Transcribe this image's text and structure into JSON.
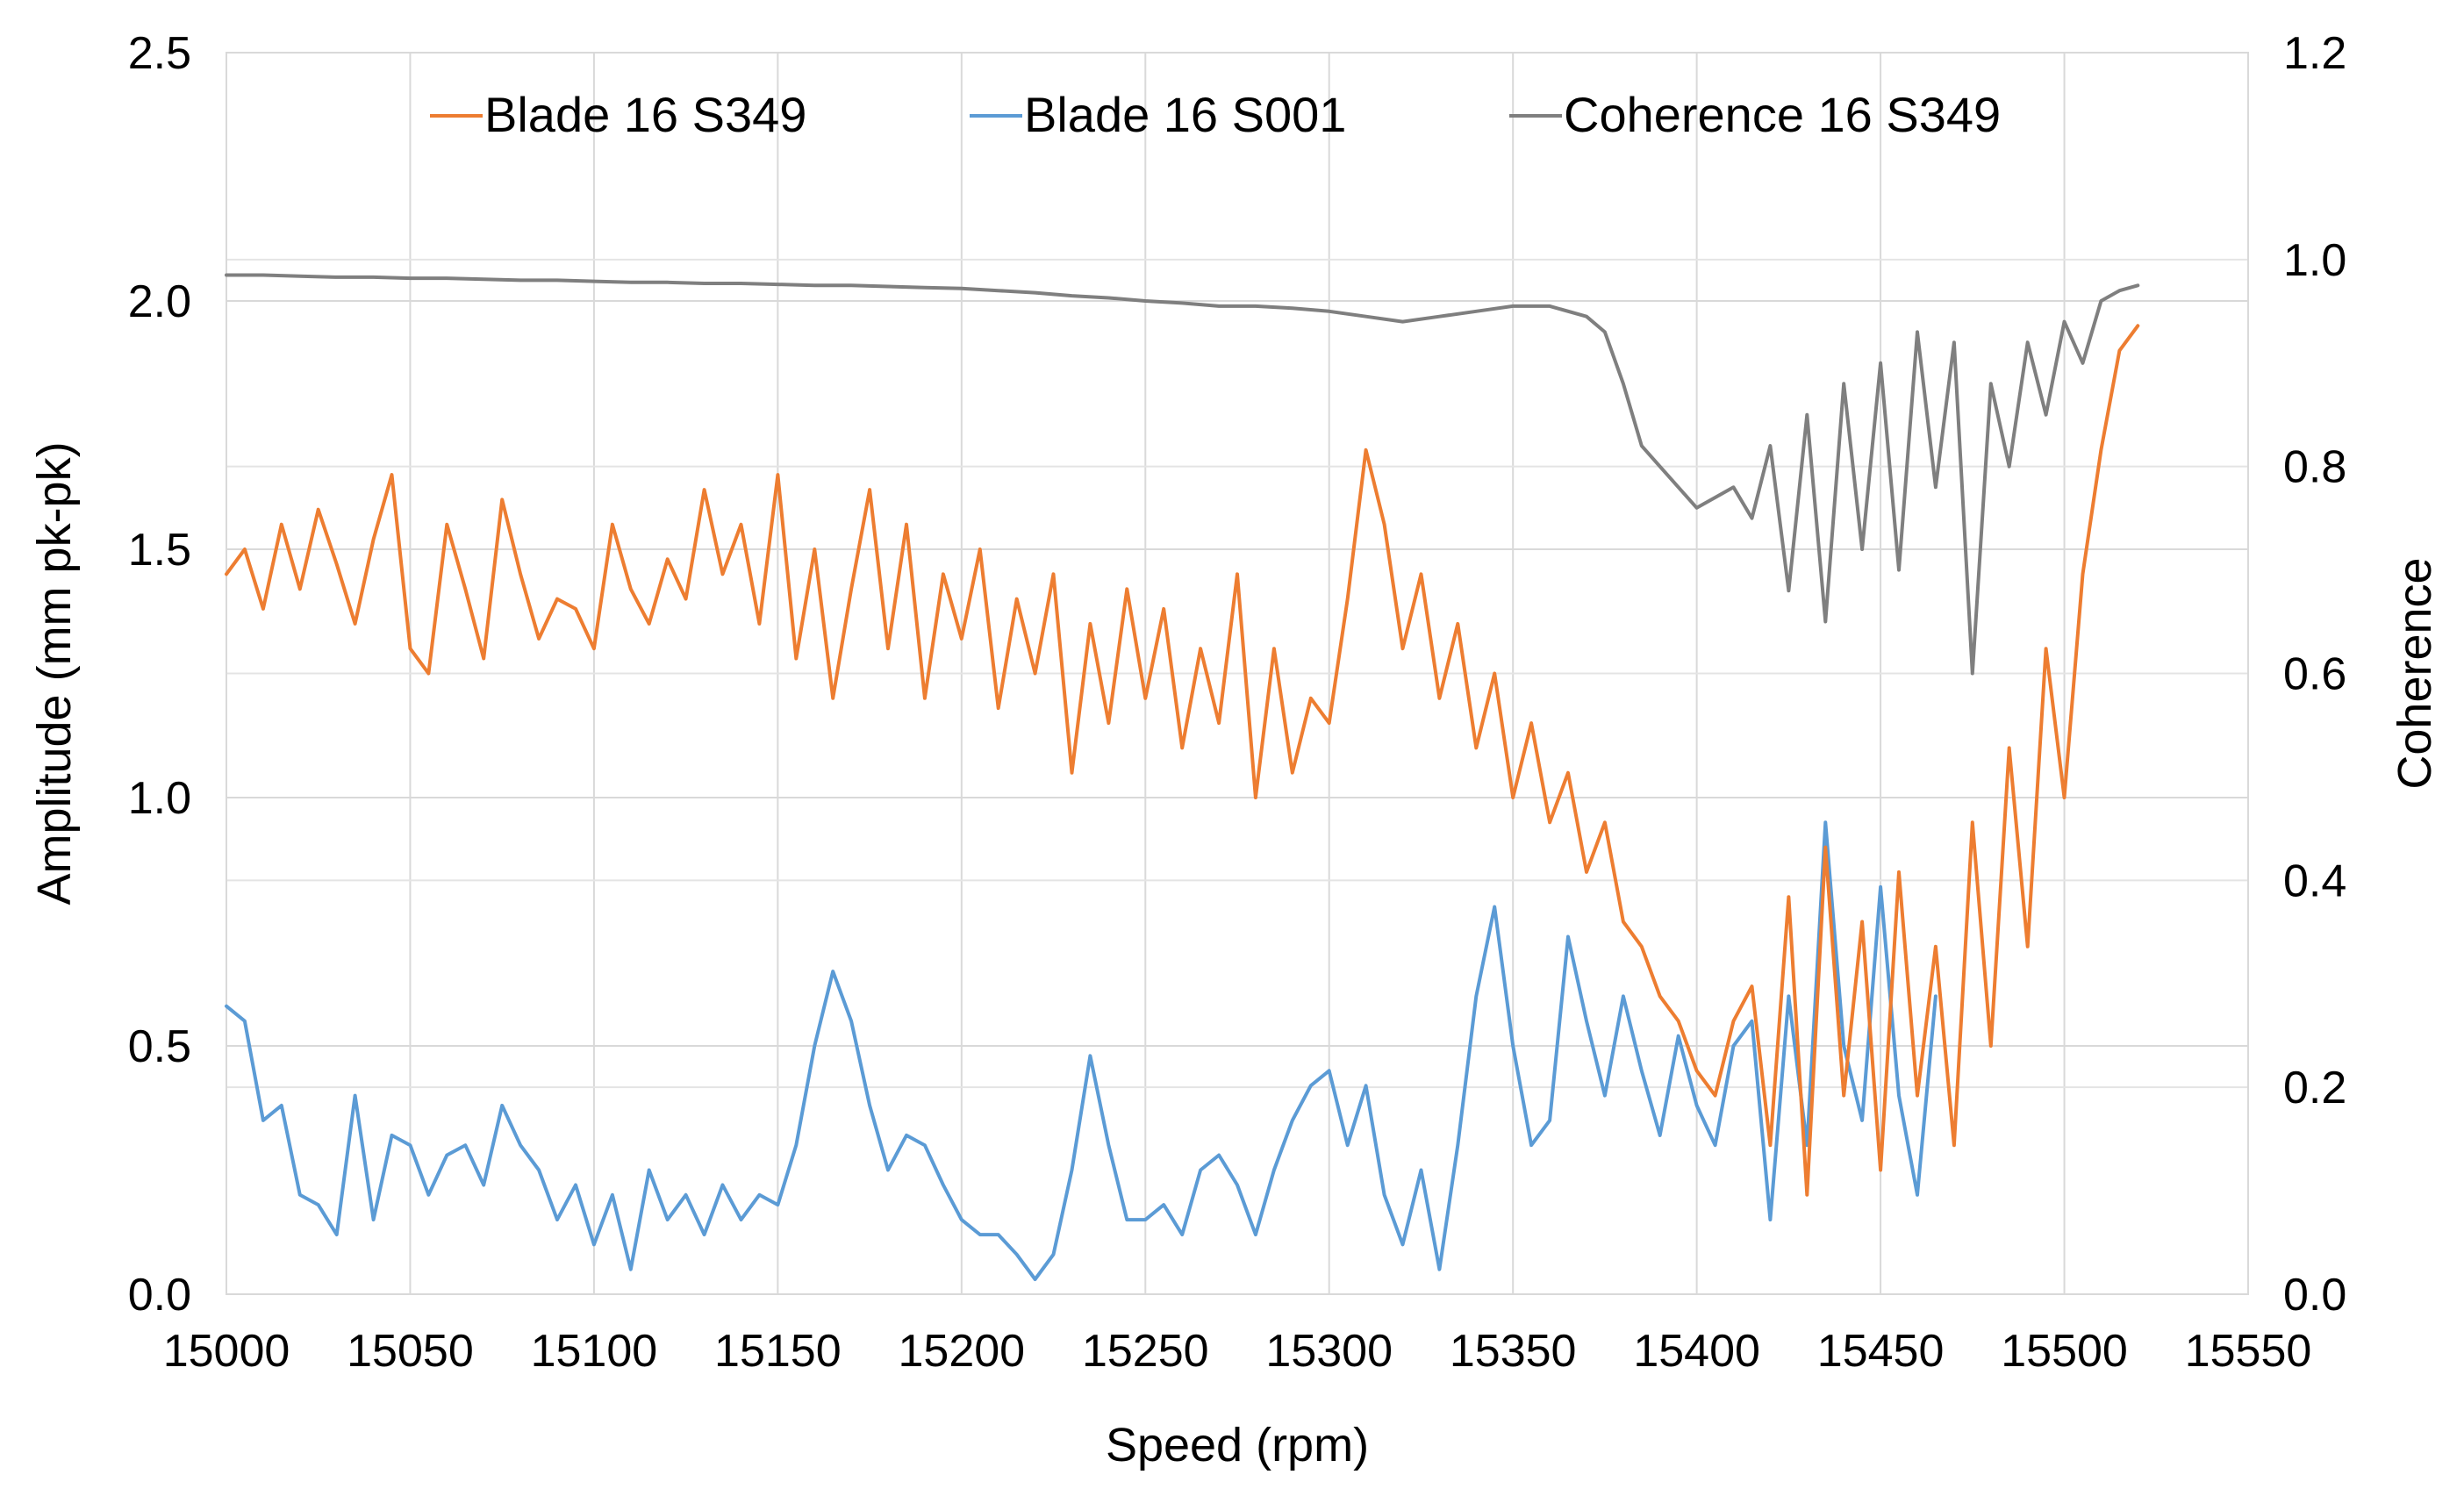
{
  "chart_data": {
    "type": "line",
    "xlabel": "Speed (rpm)",
    "ylabel": "Amplitude (mm pk-pk)",
    "y2label": "Coherence",
    "xlim": [
      15000,
      15550
    ],
    "ylim": [
      0,
      2.5
    ],
    "y2lim": [
      0,
      1.2
    ],
    "x_ticks": [
      15000,
      15050,
      15100,
      15150,
      15200,
      15250,
      15300,
      15350,
      15400,
      15450,
      15500,
      15550
    ],
    "x_tick_labels": [
      "15000",
      "15050",
      "15100",
      "15150",
      "15200",
      "15250",
      "15300",
      "15350",
      "15400",
      "15450",
      "15500",
      "15550"
    ],
    "y_ticks": [
      0,
      0.5,
      1.0,
      1.5,
      2.0,
      2.5
    ],
    "y_tick_labels": [
      "0.0",
      "0.5",
      "1.0",
      "1.5",
      "2.0",
      "2.5"
    ],
    "y2_ticks": [
      0,
      0.2,
      0.4,
      0.6,
      0.8,
      1.0,
      1.2
    ],
    "y2_tick_labels": [
      "0.0",
      "0.2",
      "0.4",
      "0.6",
      "0.8",
      "1.0",
      "1.2"
    ],
    "grid": true,
    "legend_position": "top",
    "series": [
      {
        "name": "Blade 16 S349",
        "axis": "left",
        "color": "#ED7D31",
        "x": [
          15000,
          15005,
          15010,
          15015,
          15020,
          15025,
          15030,
          15035,
          15040,
          15045,
          15050,
          15055,
          15060,
          15065,
          15070,
          15075,
          15080,
          15085,
          15090,
          15095,
          15100,
          15105,
          15110,
          15115,
          15120,
          15125,
          15130,
          15135,
          15140,
          15145,
          15150,
          15155,
          15160,
          15165,
          15170,
          15175,
          15180,
          15185,
          15190,
          15195,
          15200,
          15205,
          15210,
          15215,
          15220,
          15225,
          15230,
          15235,
          15240,
          15245,
          15250,
          15255,
          15260,
          15265,
          15270,
          15275,
          15280,
          15285,
          15290,
          15295,
          15300,
          15305,
          15310,
          15315,
          15320,
          15325,
          15330,
          15335,
          15340,
          15345,
          15350,
          15355,
          15360,
          15365,
          15370,
          15375,
          15380,
          15385,
          15390,
          15395,
          15400,
          15405,
          15410,
          15415,
          15420,
          15425,
          15430,
          15435,
          15440,
          15445,
          15450,
          15455,
          15460,
          15465,
          15470,
          15475,
          15480,
          15485,
          15490,
          15495,
          15500,
          15505,
          15510,
          15515,
          15520
        ],
        "y": [
          1.45,
          1.5,
          1.38,
          1.55,
          1.42,
          1.58,
          1.47,
          1.35,
          1.52,
          1.65,
          1.3,
          1.25,
          1.55,
          1.42,
          1.28,
          1.6,
          1.45,
          1.32,
          1.4,
          1.38,
          1.3,
          1.55,
          1.42,
          1.35,
          1.48,
          1.4,
          1.62,
          1.45,
          1.55,
          1.35,
          1.65,
          1.28,
          1.5,
          1.2,
          1.42,
          1.62,
          1.3,
          1.55,
          1.2,
          1.45,
          1.32,
          1.5,
          1.18,
          1.4,
          1.25,
          1.45,
          1.05,
          1.35,
          1.15,
          1.42,
          1.2,
          1.38,
          1.1,
          1.3,
          1.15,
          1.45,
          1.0,
          1.3,
          1.05,
          1.2,
          1.15,
          1.4,
          1.7,
          1.55,
          1.3,
          1.45,
          1.2,
          1.35,
          1.1,
          1.25,
          1.0,
          1.15,
          0.95,
          1.05,
          0.85,
          0.95,
          0.75,
          0.7,
          0.6,
          0.55,
          0.45,
          0.4,
          0.55,
          0.62,
          0.3,
          0.8,
          0.2,
          0.9,
          0.4,
          0.75,
          0.25,
          0.85,
          0.4,
          0.7,
          0.3,
          0.95,
          0.5,
          1.1,
          0.7,
          1.3,
          1.0,
          1.45,
          1.7,
          1.9,
          1.95
        ]
      },
      {
        "name": "Blade 16 S001",
        "axis": "left",
        "color": "#5B9BD5",
        "x": [
          15000,
          15005,
          15010,
          15015,
          15020,
          15025,
          15030,
          15035,
          15040,
          15045,
          15050,
          15055,
          15060,
          15065,
          15070,
          15075,
          15080,
          15085,
          15090,
          15095,
          15100,
          15105,
          15110,
          15115,
          15120,
          15125,
          15130,
          15135,
          15140,
          15145,
          15150,
          15155,
          15160,
          15165,
          15170,
          15175,
          15180,
          15185,
          15190,
          15195,
          15200,
          15205,
          15210,
          15215,
          15220,
          15225,
          15230,
          15235,
          15240,
          15245,
          15250,
          15255,
          15260,
          15265,
          15270,
          15275,
          15280,
          15285,
          15290,
          15295,
          15300,
          15305,
          15310,
          15315,
          15320,
          15325,
          15330,
          15335,
          15340,
          15345,
          15350,
          15355,
          15360,
          15365,
          15370,
          15375,
          15380,
          15385,
          15390,
          15395,
          15400,
          15405,
          15410,
          15415,
          15420,
          15425,
          15430,
          15435,
          15440,
          15445,
          15450,
          15455,
          15460,
          15465
        ],
        "y": [
          0.58,
          0.55,
          0.35,
          0.38,
          0.2,
          0.18,
          0.12,
          0.4,
          0.15,
          0.32,
          0.3,
          0.2,
          0.28,
          0.3,
          0.22,
          0.38,
          0.3,
          0.25,
          0.15,
          0.22,
          0.1,
          0.2,
          0.05,
          0.25,
          0.15,
          0.2,
          0.12,
          0.22,
          0.15,
          0.2,
          0.18,
          0.3,
          0.5,
          0.65,
          0.55,
          0.38,
          0.25,
          0.32,
          0.3,
          0.22,
          0.15,
          0.12,
          0.12,
          0.08,
          0.03,
          0.08,
          0.25,
          0.48,
          0.3,
          0.15,
          0.15,
          0.18,
          0.12,
          0.25,
          0.28,
          0.22,
          0.12,
          0.25,
          0.35,
          0.42,
          0.45,
          0.3,
          0.42,
          0.2,
          0.1,
          0.25,
          0.05,
          0.3,
          0.6,
          0.78,
          0.5,
          0.3,
          0.35,
          0.72,
          0.55,
          0.4,
          0.6,
          0.45,
          0.32,
          0.52,
          0.38,
          0.3,
          0.5,
          0.55,
          0.15,
          0.6,
          0.3,
          0.95,
          0.5,
          0.35,
          0.82,
          0.4,
          0.2,
          0.6
        ]
      },
      {
        "name": "Coherence 16 S349",
        "axis": "right",
        "color": "#7F7F7F",
        "x": [
          15000,
          15010,
          15020,
          15030,
          15040,
          15050,
          15060,
          15070,
          15080,
          15090,
          15100,
          15110,
          15120,
          15130,
          15140,
          15150,
          15160,
          15170,
          15180,
          15190,
          15200,
          15210,
          15220,
          15230,
          15240,
          15250,
          15260,
          15270,
          15280,
          15290,
          15300,
          15310,
          15320,
          15330,
          15340,
          15350,
          15360,
          15370,
          15375,
          15380,
          15385,
          15390,
          15395,
          15400,
          15405,
          15410,
          15415,
          15420,
          15425,
          15430,
          15435,
          15440,
          15445,
          15450,
          15455,
          15460,
          15465,
          15470,
          15475,
          15480,
          15485,
          15490,
          15495,
          15500,
          15505,
          15510,
          15515,
          15520
        ],
        "y": [
          0.985,
          0.985,
          0.984,
          0.983,
          0.983,
          0.982,
          0.982,
          0.981,
          0.98,
          0.98,
          0.979,
          0.978,
          0.978,
          0.977,
          0.977,
          0.976,
          0.975,
          0.975,
          0.974,
          0.973,
          0.972,
          0.97,
          0.968,
          0.965,
          0.963,
          0.96,
          0.958,
          0.955,
          0.955,
          0.953,
          0.95,
          0.945,
          0.94,
          0.945,
          0.95,
          0.955,
          0.955,
          0.945,
          0.93,
          0.88,
          0.82,
          0.8,
          0.78,
          0.76,
          0.77,
          0.78,
          0.75,
          0.82,
          0.68,
          0.85,
          0.65,
          0.88,
          0.72,
          0.9,
          0.7,
          0.93,
          0.78,
          0.92,
          0.6,
          0.88,
          0.8,
          0.92,
          0.85,
          0.94,
          0.9,
          0.96,
          0.97,
          0.975
        ]
      }
    ]
  }
}
